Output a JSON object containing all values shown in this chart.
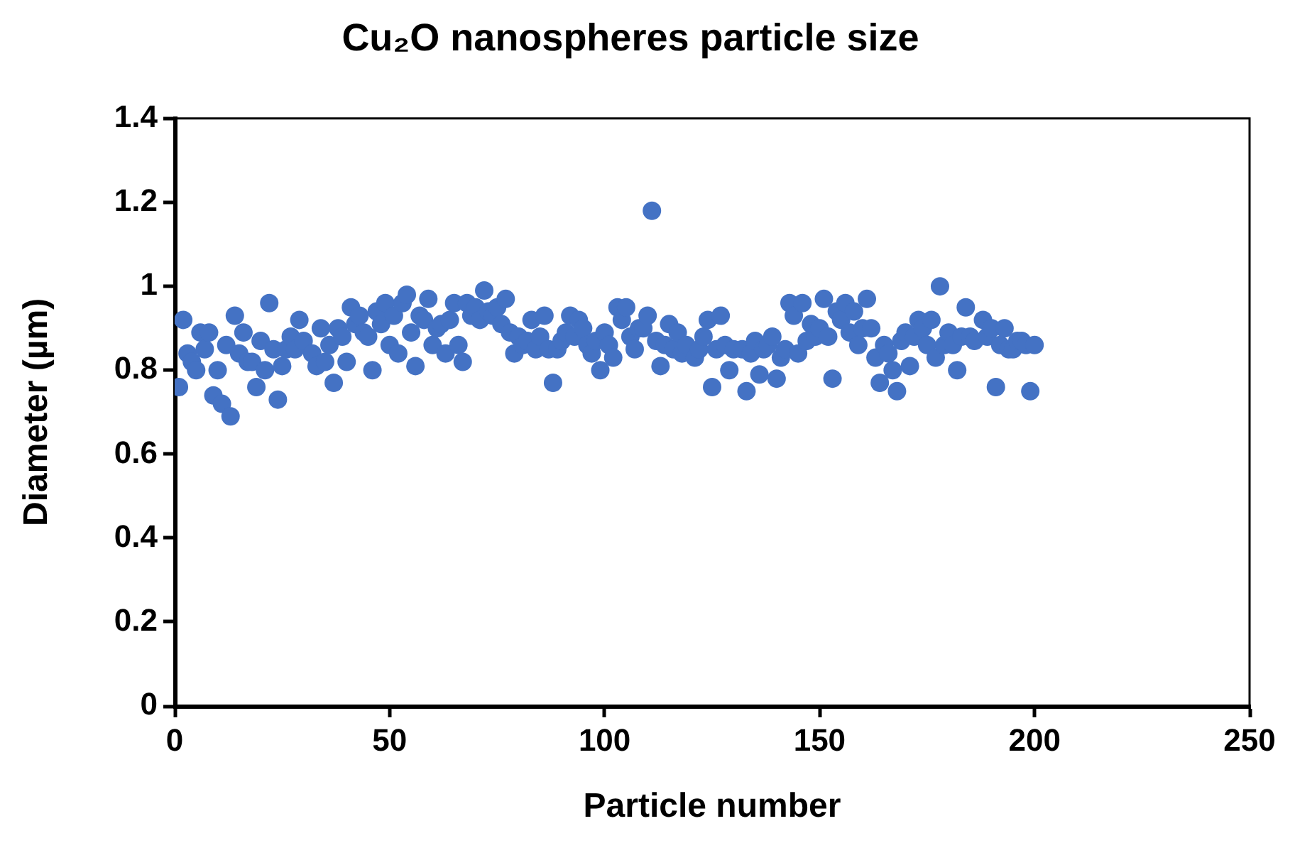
{
  "chart_data": {
    "type": "scatter",
    "title": "Cu₂O nanospheres particle size",
    "xlabel": "Particle number",
    "ylabel": "Diameter (µm)",
    "x": [
      1,
      2,
      3,
      4,
      5,
      6,
      7,
      8,
      9,
      10,
      11,
      12,
      13,
      14,
      15,
      16,
      17,
      18,
      19,
      20,
      21,
      22,
      23,
      24,
      25,
      26,
      27,
      28,
      29,
      30,
      32,
      33,
      34,
      35,
      36,
      37,
      38,
      39,
      40,
      41,
      42,
      43,
      44,
      45,
      46,
      47,
      48,
      49,
      50,
      51,
      52,
      53,
      54,
      55,
      56,
      57,
      58,
      59,
      60,
      61,
      62,
      63,
      64,
      65,
      66,
      67,
      68,
      69,
      70,
      71,
      72,
      73,
      74,
      75,
      76,
      77,
      78,
      79,
      80,
      81,
      82,
      83,
      84,
      85,
      86,
      87,
      88,
      89,
      90,
      91,
      92,
      93,
      94,
      95,
      96,
      97,
      98,
      99,
      100,
      101,
      102,
      103,
      104,
      105,
      106,
      107,
      108,
      109,
      110,
      111,
      112,
      113,
      114,
      115,
      116,
      117,
      118,
      119,
      121,
      122,
      123,
      124,
      125,
      126,
      127,
      128,
      129,
      130,
      132,
      133,
      134,
      135,
      136,
      137,
      138,
      139,
      140,
      141,
      142,
      143,
      144,
      145,
      146,
      147,
      148,
      149,
      150,
      151,
      152,
      153,
      154,
      155,
      156,
      157,
      158,
      159,
      160,
      161,
      162,
      163,
      164,
      165,
      166,
      167,
      168,
      169,
      170,
      171,
      172,
      173,
      174,
      175,
      176,
      177,
      178,
      179,
      180,
      181,
      182,
      183,
      184,
      185,
      186,
      188,
      189,
      190,
      191,
      192,
      193,
      194,
      195,
      196,
      197,
      198,
      199,
      200
    ],
    "values": [
      0.76,
      0.92,
      0.84,
      0.82,
      0.8,
      0.89,
      0.85,
      0.89,
      0.74,
      0.8,
      0.72,
      0.86,
      0.69,
      0.93,
      0.84,
      0.89,
      0.82,
      0.82,
      0.76,
      0.87,
      0.8,
      0.96,
      0.85,
      0.73,
      0.81,
      0.85,
      0.88,
      0.85,
      0.92,
      0.87,
      0.84,
      0.81,
      0.9,
      0.82,
      0.86,
      0.77,
      0.9,
      0.88,
      0.82,
      0.95,
      0.91,
      0.93,
      0.89,
      0.88,
      0.8,
      0.94,
      0.91,
      0.96,
      0.86,
      0.93,
      0.84,
      0.96,
      0.98,
      0.89,
      0.81,
      0.93,
      0.92,
      0.97,
      0.86,
      0.9,
      0.91,
      0.84,
      0.92,
      0.96,
      0.86,
      0.82,
      0.96,
      0.93,
      0.95,
      0.92,
      0.99,
      0.94,
      0.93,
      0.95,
      0.91,
      0.97,
      0.89,
      0.84,
      0.88,
      0.86,
      0.87,
      0.92,
      0.85,
      0.88,
      0.93,
      0.85,
      0.77,
      0.85,
      0.87,
      0.89,
      0.93,
      0.88,
      0.92,
      0.9,
      0.86,
      0.84,
      0.87,
      0.8,
      0.89,
      0.86,
      0.83,
      0.95,
      0.92,
      0.95,
      0.88,
      0.85,
      0.9,
      0.9,
      0.93,
      1.18,
      0.87,
      0.81,
      0.86,
      0.91,
      0.85,
      0.89,
      0.84,
      0.86,
      0.83,
      0.85,
      0.88,
      0.92,
      0.76,
      0.85,
      0.93,
      0.86,
      0.8,
      0.85,
      0.85,
      0.75,
      0.84,
      0.87,
      0.79,
      0.85,
      0.86,
      0.88,
      0.78,
      0.83,
      0.85,
      0.96,
      0.93,
      0.84,
      0.96,
      0.87,
      0.91,
      0.88,
      0.9,
      0.97,
      0.88,
      0.78,
      0.94,
      0.92,
      0.96,
      0.89,
      0.94,
      0.86,
      0.9,
      0.97,
      0.9,
      0.83,
      0.77,
      0.86,
      0.84,
      0.8,
      0.75,
      0.87,
      0.89,
      0.81,
      0.88,
      0.92,
      0.9,
      0.86,
      0.92,
      0.83,
      1.0,
      0.86,
      0.89,
      0.86,
      0.8,
      0.88,
      0.95,
      0.88,
      0.87,
      0.92,
      0.88,
      0.9,
      0.76,
      0.86,
      0.9,
      0.85,
      0.85,
      0.87,
      0.87,
      0.86,
      0.75,
      0.86
    ],
    "color": "#4472c4",
    "xlim": [
      0,
      250
    ],
    "xticks": [
      0,
      50,
      100,
      150,
      200,
      250
    ],
    "ylim": [
      0,
      1.4
    ],
    "yticks": [
      0,
      0.2,
      0.4,
      0.6,
      0.8,
      1,
      1.2,
      1.4
    ],
    "grid": false,
    "legend": false,
    "marker": "circle"
  }
}
